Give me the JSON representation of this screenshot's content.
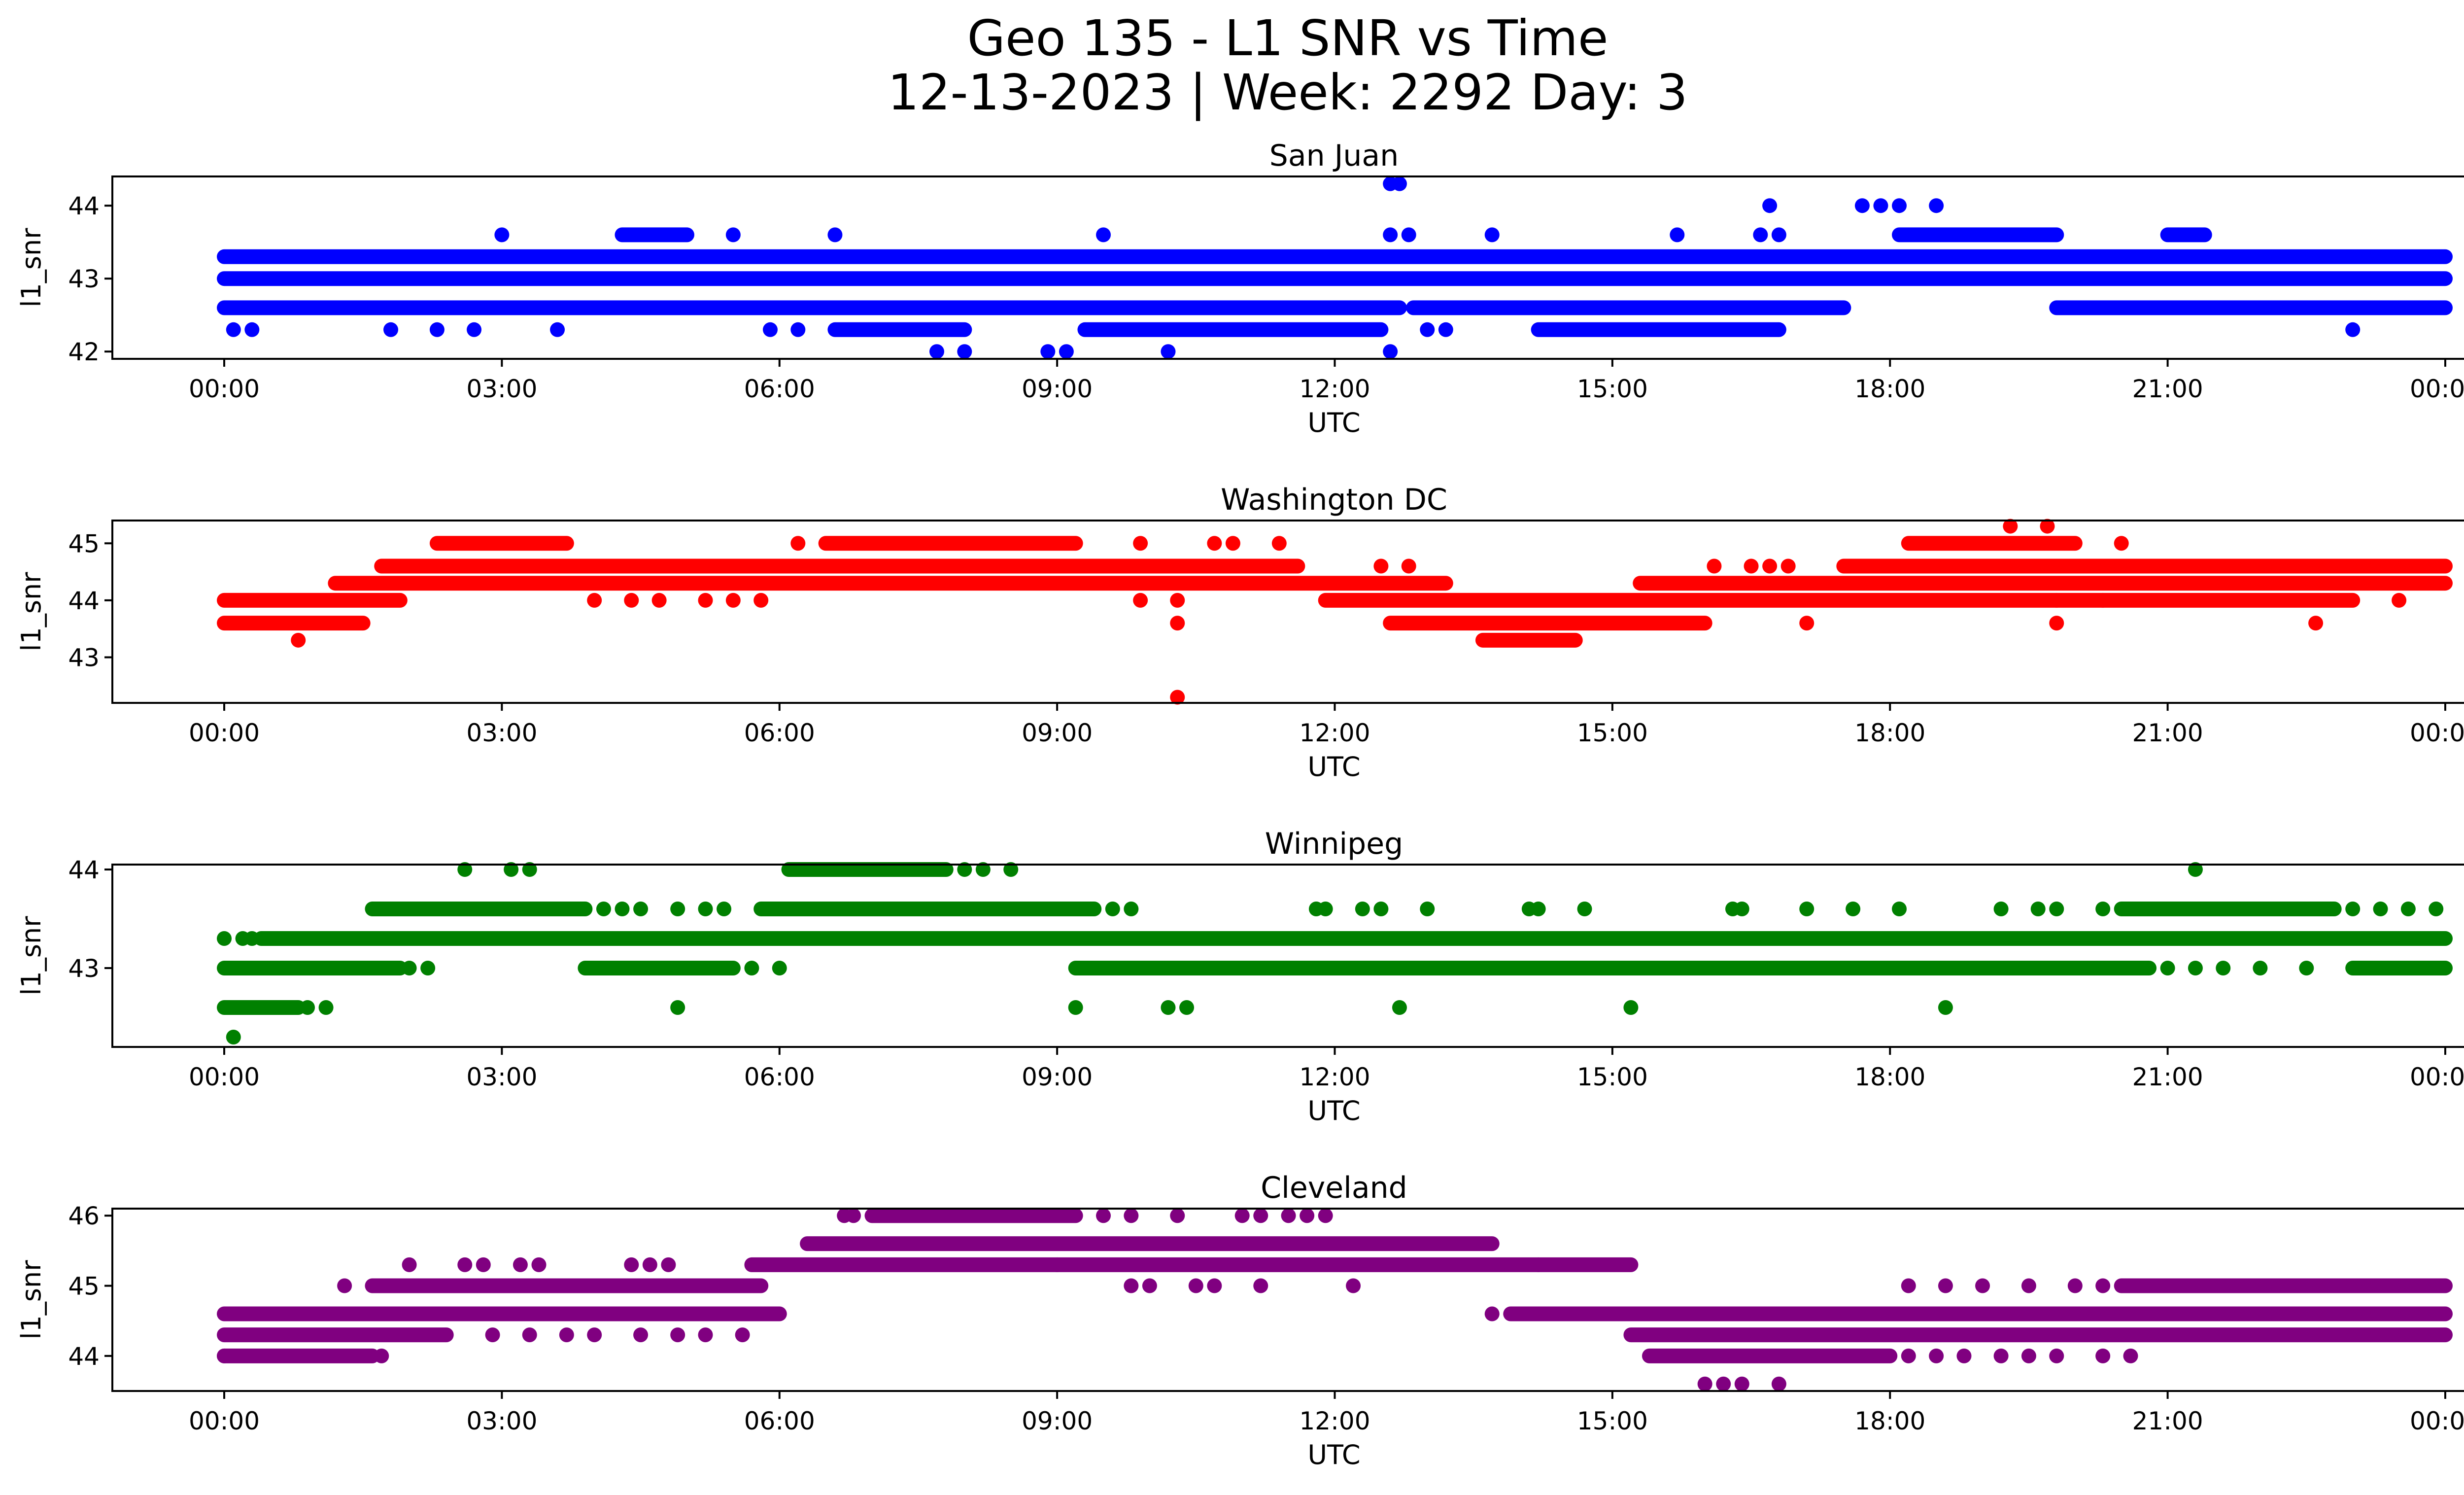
{
  "title_line1": "Geo 135 - L1 SNR vs Time",
  "title_line2": "12-13-2023 | Week: 2292 Day: 3",
  "chart_data": [
    {
      "type": "scatter",
      "title": "San Juan",
      "xlabel": "UTC",
      "ylabel": "l1_snr",
      "color": "#0000ff",
      "x_unit": "hours UTC",
      "xticks": [
        "00:00",
        "03:00",
        "06:00",
        "09:00",
        "12:00",
        "15:00",
        "18:00",
        "21:00",
        "00:00"
      ],
      "yticks": [
        42,
        43,
        44
      ],
      "ylim": [
        41.9,
        44.4
      ],
      "series": [
        {
          "segments": [
            [
              43.0,
              0.0,
              24.0
            ],
            [
              42.6,
              0.0,
              12.7
            ],
            [
              42.6,
              12.85,
              17.5
            ],
            [
              42.6,
              19.8,
              24.0
            ],
            [
              43.3,
              0.0,
              24.0
            ],
            [
              42.3,
              6.6,
              8.0
            ],
            [
              42.3,
              9.3,
              12.5
            ],
            [
              42.3,
              14.2,
              16.8
            ],
            [
              43.6,
              4.3,
              5.0
            ],
            [
              43.6,
              18.1,
              19.8
            ],
            [
              43.6,
              21.0,
              21.4
            ]
          ],
          "points": [
            [
              0.1,
              42.3
            ],
            [
              0.3,
              42.3
            ],
            [
              1.8,
              42.3
            ],
            [
              2.3,
              42.3
            ],
            [
              2.7,
              42.3
            ],
            [
              3.6,
              42.3
            ],
            [
              5.9,
              42.3
            ],
            [
              6.2,
              42.3
            ],
            [
              13.0,
              42.3
            ],
            [
              13.2,
              42.3
            ],
            [
              23.0,
              42.3
            ],
            [
              7.7,
              42.0
            ],
            [
              8.0,
              42.0
            ],
            [
              8.9,
              42.0
            ],
            [
              9.1,
              42.0
            ],
            [
              10.2,
              42.0
            ],
            [
              12.6,
              42.0
            ],
            [
              3.0,
              43.6
            ],
            [
              5.5,
              43.6
            ],
            [
              6.6,
              43.6
            ],
            [
              9.5,
              43.6
            ],
            [
              12.6,
              43.6
            ],
            [
              12.8,
              43.6
            ],
            [
              13.7,
              43.6
            ],
            [
              15.7,
              43.6
            ],
            [
              16.6,
              43.6
            ],
            [
              16.8,
              43.6
            ],
            [
              16.7,
              44.0
            ],
            [
              17.7,
              44.0
            ],
            [
              17.9,
              44.0
            ],
            [
              18.1,
              44.0
            ],
            [
              18.5,
              44.0
            ],
            [
              12.6,
              44.3
            ],
            [
              12.7,
              44.3
            ]
          ]
        }
      ]
    },
    {
      "type": "scatter",
      "title": "Washington DC",
      "xlabel": "UTC",
      "ylabel": "l1_snr",
      "color": "#ff0000",
      "x_unit": "hours UTC",
      "xticks": [
        "00:00",
        "03:00",
        "06:00",
        "09:00",
        "12:00",
        "15:00",
        "18:00",
        "21:00",
        "00:00"
      ],
      "yticks": [
        43,
        44,
        45
      ],
      "ylim": [
        42.2,
        45.4
      ],
      "series": [
        {
          "segments": [
            [
              43.6,
              0.0,
              1.5
            ],
            [
              43.6,
              12.6,
              16.0
            ],
            [
              43.3,
              13.6,
              14.6
            ],
            [
              44.0,
              0.0,
              1.9
            ],
            [
              44.0,
              11.9,
              23.0
            ],
            [
              44.3,
              1.2,
              13.2
            ],
            [
              44.3,
              15.3,
              24.0
            ],
            [
              44.6,
              1.7,
              11.6
            ],
            [
              44.6,
              17.5,
              24.0
            ],
            [
              45.0,
              2.3,
              3.7
            ],
            [
              45.0,
              6.5,
              9.2
            ],
            [
              45.0,
              18.2,
              20.0
            ]
          ],
          "points": [
            [
              0.8,
              43.3
            ],
            [
              10.3,
              42.3
            ],
            [
              4.0,
              44.0
            ],
            [
              4.4,
              44.0
            ],
            [
              4.7,
              44.0
            ],
            [
              5.2,
              44.0
            ],
            [
              5.5,
              44.0
            ],
            [
              5.8,
              44.0
            ],
            [
              9.9,
              44.0
            ],
            [
              10.3,
              44.0
            ],
            [
              19.8,
              44.0
            ],
            [
              20.3,
              44.0
            ],
            [
              23.5,
              44.0
            ],
            [
              10.3,
              43.6
            ],
            [
              17.1,
              43.6
            ],
            [
              19.8,
              43.6
            ],
            [
              22.6,
              43.6
            ],
            [
              6.2,
              45.0
            ],
            [
              9.9,
              45.0
            ],
            [
              10.7,
              45.0
            ],
            [
              10.9,
              45.0
            ],
            [
              11.4,
              45.0
            ],
            [
              20.5,
              45.0
            ],
            [
              12.5,
              44.6
            ],
            [
              12.8,
              44.6
            ],
            [
              16.1,
              44.6
            ],
            [
              16.5,
              44.6
            ],
            [
              16.7,
              44.6
            ],
            [
              16.9,
              44.6
            ],
            [
              19.3,
              45.3
            ],
            [
              19.7,
              45.3
            ]
          ]
        }
      ]
    },
    {
      "type": "scatter",
      "title": "Winnipeg",
      "xlabel": "UTC",
      "ylabel": "l1_snr",
      "color": "#008000",
      "x_unit": "hours UTC",
      "xticks": [
        "00:00",
        "03:00",
        "06:00",
        "09:00",
        "12:00",
        "15:00",
        "18:00",
        "21:00",
        "00:00"
      ],
      "yticks": [
        43,
        44
      ],
      "ylim": [
        42.2,
        44.05
      ],
      "series": [
        {
          "segments": [
            [
              43.3,
              0.4,
              24.0
            ],
            [
              43.0,
              0.0,
              1.9
            ],
            [
              43.0,
              3.9,
              5.5
            ],
            [
              43.0,
              9.2,
              20.8
            ],
            [
              43.0,
              23.0,
              24.0
            ],
            [
              42.6,
              0.0,
              0.8
            ],
            [
              43.6,
              1.6,
              3.9
            ],
            [
              43.6,
              5.8,
              9.4
            ],
            [
              43.6,
              20.5,
              22.8
            ],
            [
              44.0,
              6.1,
              7.8
            ]
          ],
          "points": [
            [
              0.0,
              43.3
            ],
            [
              0.2,
              43.3
            ],
            [
              0.3,
              43.3
            ],
            [
              2.0,
              43.0
            ],
            [
              2.2,
              43.0
            ],
            [
              5.7,
              43.0
            ],
            [
              6.0,
              43.0
            ],
            [
              21.0,
              43.0
            ],
            [
              21.3,
              43.0
            ],
            [
              21.6,
              43.0
            ],
            [
              22.0,
              43.0
            ],
            [
              22.5,
              43.0
            ],
            [
              0.9,
              42.6
            ],
            [
              1.1,
              42.6
            ],
            [
              4.9,
              42.6
            ],
            [
              9.2,
              42.6
            ],
            [
              10.2,
              42.6
            ],
            [
              10.4,
              42.6
            ],
            [
              12.7,
              42.6
            ],
            [
              15.2,
              42.6
            ],
            [
              18.6,
              42.6
            ],
            [
              0.1,
              42.3
            ],
            [
              4.1,
              43.6
            ],
            [
              4.3,
              43.6
            ],
            [
              4.5,
              43.6
            ],
            [
              4.9,
              43.6
            ],
            [
              5.2,
              43.6
            ],
            [
              5.4,
              43.6
            ],
            [
              9.6,
              43.6
            ],
            [
              9.8,
              43.6
            ],
            [
              11.8,
              43.6
            ],
            [
              11.9,
              43.6
            ],
            [
              12.3,
              43.6
            ],
            [
              12.5,
              43.6
            ],
            [
              13.0,
              43.6
            ],
            [
              14.1,
              43.6
            ],
            [
              14.2,
              43.6
            ],
            [
              14.7,
              43.6
            ],
            [
              16.3,
              43.6
            ],
            [
              16.4,
              43.6
            ],
            [
              17.1,
              43.6
            ],
            [
              17.6,
              43.6
            ],
            [
              18.1,
              43.6
            ],
            [
              19.2,
              43.6
            ],
            [
              19.6,
              43.6
            ],
            [
              19.8,
              43.6
            ],
            [
              20.3,
              43.6
            ],
            [
              23.0,
              43.6
            ],
            [
              23.3,
              43.6
            ],
            [
              23.6,
              43.6
            ],
            [
              23.9,
              43.6
            ],
            [
              2.6,
              44.0
            ],
            [
              3.1,
              44.0
            ],
            [
              3.3,
              44.0
            ],
            [
              8.0,
              44.0
            ],
            [
              8.2,
              44.0
            ],
            [
              8.5,
              44.0
            ],
            [
              21.3,
              44.0
            ]
          ]
        }
      ]
    },
    {
      "type": "scatter",
      "title": "Cleveland",
      "xlabel": "UTC",
      "ylabel": "l1_snr",
      "color": "#800080",
      "x_unit": "hours UTC",
      "xticks": [
        "00:00",
        "03:00",
        "06:00",
        "09:00",
        "12:00",
        "15:00",
        "18:00",
        "21:00",
        "00:00"
      ],
      "yticks": [
        44,
        45,
        46
      ],
      "ylim": [
        43.5,
        46.1
      ],
      "series": [
        {
          "segments": [
            [
              44.0,
              0.0,
              1.6
            ],
            [
              44.0,
              15.4,
              18.0
            ],
            [
              44.3,
              0.0,
              2.4
            ],
            [
              44.3,
              15.2,
              24.0
            ],
            [
              44.6,
              0.0,
              6.0
            ],
            [
              44.6,
              13.9,
              15.9
            ],
            [
              44.6,
              15.9,
              24.0
            ],
            [
              45.0,
              1.6,
              5.8
            ],
            [
              45.0,
              20.5,
              24.0
            ],
            [
              45.3,
              5.7,
              9.0
            ],
            [
              45.3,
              9.0,
              14.2
            ],
            [
              45.3,
              14.2,
              15.2
            ],
            [
              45.6,
              6.3,
              13.7
            ],
            [
              46.0,
              7.0,
              9.2
            ]
          ],
          "points": [
            [
              0.0,
              44.0
            ],
            [
              1.7,
              44.0
            ],
            [
              18.2,
              44.0
            ],
            [
              18.5,
              44.0
            ],
            [
              18.8,
              44.0
            ],
            [
              19.2,
              44.0
            ],
            [
              19.5,
              44.0
            ],
            [
              19.8,
              44.0
            ],
            [
              20.3,
              44.0
            ],
            [
              20.6,
              44.0
            ],
            [
              2.9,
              44.3
            ],
            [
              3.3,
              44.3
            ],
            [
              3.7,
              44.3
            ],
            [
              4.0,
              44.3
            ],
            [
              4.5,
              44.3
            ],
            [
              4.9,
              44.3
            ],
            [
              5.2,
              44.3
            ],
            [
              5.6,
              44.3
            ],
            [
              1.3,
              45.0
            ],
            [
              18.2,
              45.0
            ],
            [
              18.6,
              45.0
            ],
            [
              19.0,
              45.0
            ],
            [
              19.5,
              45.0
            ],
            [
              20.0,
              45.0
            ],
            [
              20.3,
              45.0
            ],
            [
              9.8,
              45.0
            ],
            [
              10.0,
              45.0
            ],
            [
              10.5,
              45.0
            ],
            [
              10.7,
              45.0
            ],
            [
              11.2,
              45.0
            ],
            [
              12.2,
              45.0
            ],
            [
              13.7,
              44.6
            ],
            [
              2.0,
              45.3
            ],
            [
              2.6,
              45.3
            ],
            [
              2.8,
              45.3
            ],
            [
              3.2,
              45.3
            ],
            [
              3.4,
              45.3
            ],
            [
              4.4,
              45.3
            ],
            [
              4.6,
              45.3
            ],
            [
              4.8,
              45.3
            ],
            [
              6.7,
              46.0
            ],
            [
              6.8,
              46.0
            ],
            [
              9.5,
              46.0
            ],
            [
              9.8,
              46.0
            ],
            [
              10.3,
              46.0
            ],
            [
              11.0,
              46.0
            ],
            [
              11.2,
              46.0
            ],
            [
              11.5,
              46.0
            ],
            [
              11.7,
              46.0
            ],
            [
              11.9,
              46.0
            ],
            [
              16.0,
              43.6
            ],
            [
              16.2,
              43.6
            ],
            [
              16.4,
              43.6
            ],
            [
              16.8,
              43.6
            ]
          ]
        }
      ]
    }
  ]
}
